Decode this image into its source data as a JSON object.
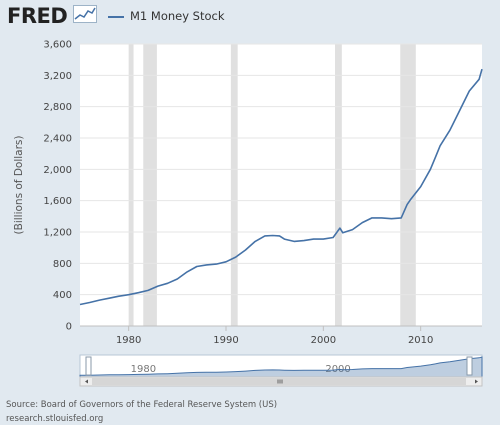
{
  "brand": {
    "logo_text": "FRED",
    "logo_icon": "graph-icon"
  },
  "legend": {
    "label": "M1 Money Stock",
    "color": "#4572a7"
  },
  "footer": {
    "source": "Source: Board of Governors of the Federal Reserve System (US)",
    "site": "research.stlouisfed.org"
  },
  "colors": {
    "background": "#e1e9f0",
    "plot_background": "#ffffff",
    "recession_shading": "#e0e0e0",
    "series_line": "#4572a7",
    "gridline": "#e6e6e6"
  },
  "chart_data": {
    "type": "line",
    "title": "",
    "xlabel": "",
    "ylabel": "(Billions of Dollars)",
    "xlim": [
      1975.0,
      2016.3
    ],
    "ylim": [
      0,
      3600
    ],
    "y_ticks": [
      0,
      400,
      800,
      1200,
      1600,
      2000,
      2400,
      2800,
      3200,
      3600
    ],
    "y_tick_labels": [
      "0",
      "400",
      "800",
      "1,200",
      "1,600",
      "2,000",
      "2,400",
      "2,800",
      "3,200",
      "3,600"
    ],
    "x_ticks": [
      1980,
      1990,
      2000,
      2010
    ],
    "x_tick_labels": [
      "1980",
      "1990",
      "2000",
      "2010"
    ],
    "grid": true,
    "legend_position": "top-left",
    "recessions": [
      [
        1980.0,
        1980.5
      ],
      [
        1981.5,
        1982.9
      ],
      [
        1990.5,
        1991.2
      ],
      [
        2001.2,
        2001.9
      ],
      [
        2007.9,
        2009.5
      ]
    ],
    "series": [
      {
        "name": "M1 Money Stock",
        "x": [
          1975.0,
          1976.0,
          1977.0,
          1978.0,
          1979.0,
          1980.0,
          1981.0,
          1982.0,
          1983.0,
          1984.0,
          1985.0,
          1986.0,
          1987.0,
          1988.0,
          1989.0,
          1990.0,
          1991.0,
          1992.0,
          1993.0,
          1994.0,
          1994.8,
          1995.5,
          1996.0,
          1997.0,
          1998.0,
          1999.0,
          2000.0,
          2001.0,
          2001.7,
          2002.0,
          2003.0,
          2004.0,
          2005.0,
          2006.0,
          2007.0,
          2008.0,
          2008.6,
          2009.0,
          2010.0,
          2011.0,
          2011.5,
          2012.0,
          2013.0,
          2014.0,
          2015.0,
          2016.0,
          2016.3
        ],
        "values": [
          275,
          300,
          330,
          355,
          380,
          400,
          425,
          455,
          510,
          545,
          600,
          690,
          760,
          780,
          790,
          820,
          880,
          970,
          1080,
          1150,
          1155,
          1150,
          1110,
          1080,
          1090,
          1110,
          1110,
          1130,
          1250,
          1190,
          1230,
          1320,
          1380,
          1380,
          1370,
          1380,
          1550,
          1620,
          1780,
          2000,
          2150,
          2300,
          2500,
          2750,
          3000,
          3150,
          3280
        ]
      }
    ]
  }
}
